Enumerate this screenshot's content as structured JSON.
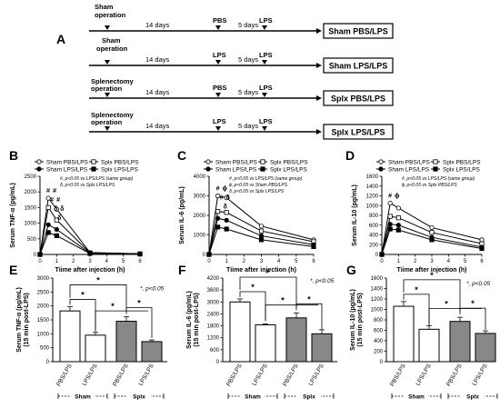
{
  "panel_a": {
    "letter": "A",
    "rows": [
      {
        "start_label": [
          "Sham",
          "operation"
        ],
        "days1": "14 days",
        "mid_label": "PBS",
        "days2": "5 days",
        "end_label": "LPS",
        "box": "Sham PBS/LPS"
      },
      {
        "start_label": [
          "Sham",
          "operation"
        ],
        "days1": "14 days",
        "mid_label": "LPS",
        "days2": "5 days",
        "end_label": "LPS",
        "box": "Sham LPS/LPS"
      },
      {
        "start_label": [
          "Splenectomy",
          "operation"
        ],
        "days1": "14 days",
        "mid_label": "PBS",
        "days2": "5 days",
        "end_label": "LPS",
        "box": "Splx PBS/LPS"
      },
      {
        "start_label": [
          "Splenectomy",
          "operation"
        ],
        "days1": "14 days",
        "mid_label": "LPS",
        "days2": "5 days",
        "end_label": "LPS",
        "box": "Splx LPS/LPS"
      }
    ]
  },
  "legend_names": [
    "Sham PBS/LPS",
    "Splx PBS/LPS",
    "Sham LPS/LPS",
    "Splx LPS/LPS"
  ],
  "chart_data": [
    {
      "panel": "B",
      "type": "line",
      "ylabel": "Serum TNF-α (pg/mL)",
      "xlabel": "Tiime after injection (h)",
      "x_ticks": [
        0,
        1,
        2,
        3,
        4,
        5,
        6
      ],
      "y_ticks": [
        0,
        500,
        1000,
        1500,
        2000,
        2500
      ],
      "ylim": [
        0,
        2500
      ],
      "xlim": [
        0,
        6
      ],
      "notes": [
        "#, p<0.05 vs LPS/LPS (same group)",
        "δ, p<0.05 vs Splx LPS/LPS"
      ],
      "annotations": [
        "#",
        "#",
        "#",
        "#",
        "δ",
        "δ",
        "δ"
      ],
      "series": [
        {
          "name": "Sham PBS/LPS",
          "marker": "open-circle",
          "x": [
            0,
            0.5,
            1,
            3,
            6
          ],
          "y": [
            0,
            1800,
            1450,
            60,
            20
          ]
        },
        {
          "name": "Splx PBS/LPS",
          "marker": "open-square",
          "x": [
            0,
            0.5,
            1,
            3,
            6
          ],
          "y": [
            0,
            1500,
            1100,
            50,
            20
          ]
        },
        {
          "name": "Sham LPS/LPS",
          "marker": "filled-circle",
          "x": [
            0,
            0.5,
            1,
            3,
            6
          ],
          "y": [
            0,
            950,
            800,
            40,
            15
          ]
        },
        {
          "name": "Splx LPS/LPS",
          "marker": "filled-square",
          "x": [
            0,
            0.5,
            1,
            3,
            6
          ],
          "y": [
            0,
            700,
            600,
            30,
            10
          ]
        }
      ]
    },
    {
      "panel": "C",
      "type": "line",
      "ylabel": "Serum IL-6 (pg/mL)",
      "xlabel": "Tiime after injection (h)",
      "x_ticks": [
        0,
        1,
        2,
        3,
        4,
        5,
        6
      ],
      "y_ticks": [
        0,
        1000,
        2000,
        3000,
        4000
      ],
      "ylim": [
        0,
        4000
      ],
      "xlim": [
        0,
        6
      ],
      "notes": [
        "#, p<0.05 vs LPS/LPS (same group)",
        "ϕ, p<0.05 vs Sham PBS/LPS",
        "δ, p<0.05 vs Splx LPS/LPS"
      ],
      "annotations": [
        "#",
        "ϕ",
        "#",
        "δ",
        "δ"
      ],
      "series": [
        {
          "name": "Sham PBS/LPS",
          "marker": "open-circle",
          "x": [
            0,
            0.5,
            1,
            3,
            6
          ],
          "y": [
            0,
            3000,
            2900,
            1450,
            750
          ]
        },
        {
          "name": "Splx PBS/LPS",
          "marker": "open-square",
          "x": [
            0,
            0.5,
            1,
            3,
            6
          ],
          "y": [
            0,
            2200,
            2150,
            1200,
            650
          ]
        },
        {
          "name": "Sham LPS/LPS",
          "marker": "filled-circle",
          "x": [
            0,
            0.5,
            1,
            3,
            6
          ],
          "y": [
            0,
            1850,
            1750,
            950,
            500
          ]
        },
        {
          "name": "Splx LPS/LPS",
          "marker": "filled-square",
          "x": [
            0,
            0.5,
            1,
            3,
            6
          ],
          "y": [
            0,
            1400,
            1300,
            750,
            400
          ]
        }
      ]
    },
    {
      "panel": "D",
      "type": "line",
      "ylabel": "Serum IL-10 (pg/mL)",
      "xlabel": "Tiime after injection (h)",
      "x_ticks": [
        0,
        1,
        2,
        3,
        4,
        5,
        6
      ],
      "y_ticks": [
        0,
        200,
        400,
        600,
        800,
        1000,
        1200,
        1400,
        1600
      ],
      "ylim": [
        0,
        1600
      ],
      "xlim": [
        0,
        6
      ],
      "notes": [
        "#, p<0.05 vs LPS/LPS (same group)",
        "ϕ, p<0.05 vs Splx PBS/LPS"
      ],
      "annotations": [
        "#",
        "ϕ"
      ],
      "series": [
        {
          "name": "Sham PBS/LPS",
          "marker": "open-circle",
          "x": [
            0,
            0.5,
            1,
            3,
            6
          ],
          "y": [
            0,
            1050,
            950,
            550,
            300
          ]
        },
        {
          "name": "Splx PBS/LPS",
          "marker": "open-square",
          "x": [
            0,
            0.5,
            1,
            3,
            6
          ],
          "y": [
            0,
            780,
            750,
            450,
            220
          ]
        },
        {
          "name": "Sham LPS/LPS",
          "marker": "filled-circle",
          "x": [
            0,
            0.5,
            1,
            3,
            6
          ],
          "y": [
            0,
            620,
            600,
            350,
            150
          ]
        },
        {
          "name": "Splx LPS/LPS",
          "marker": "filled-square",
          "x": [
            0,
            0.5,
            1,
            3,
            6
          ],
          "y": [
            0,
            520,
            500,
            300,
            120
          ]
        }
      ]
    },
    {
      "panel": "E",
      "type": "bar",
      "ylabel": "Serum TNF-α (pg/mL)",
      "ylabel2": "(15 min post-LPS)",
      "categories": [
        "PBS/LPS",
        "LPS/LPS",
        "PBS/LPS",
        "LPS/LPS"
      ],
      "groups": [
        "Sham",
        "Splx"
      ],
      "values": [
        1820,
        950,
        1450,
        720
      ],
      "errors": [
        150,
        100,
        160,
        60
      ],
      "y_ticks": [
        0,
        500,
        1000,
        1500,
        2000,
        2500,
        3000
      ],
      "ylim": [
        0,
        3000
      ],
      "sig_label": "*, p<0.05",
      "star": "*"
    },
    {
      "panel": "F",
      "type": "bar",
      "ylabel": "Serum IL-6 (pg/mL)",
      "ylabel2": "(15 min post-LPS)",
      "categories": [
        "PBS/LPS",
        "LPS/LPS",
        "PBS/LPS",
        "LPS/LPS"
      ],
      "groups": [
        "Sham",
        "Splx"
      ],
      "values": [
        3000,
        1850,
        2200,
        1400
      ],
      "errors": [
        150,
        50,
        250,
        200
      ],
      "y_ticks": [
        0,
        600,
        1200,
        1800,
        2400,
        3000,
        3600,
        4200
      ],
      "ylim": [
        0,
        4200
      ],
      "sig_label": "*, p<0.05",
      "star": "*"
    },
    {
      "panel": "G",
      "type": "bar",
      "ylabel": "Serum IL-10 (pg/mL)",
      "ylabel2": "(15 min post-LPS)",
      "categories": [
        "PBS/LPS",
        "LPS/LPS",
        "PBS/LPS",
        "LPS/LPS"
      ],
      "groups": [
        "Sham",
        "Splx"
      ],
      "values": [
        1060,
        620,
        770,
        540
      ],
      "errors": [
        90,
        70,
        80,
        50
      ],
      "y_ticks": [
        0,
        200,
        400,
        600,
        800,
        1000,
        1200,
        1400,
        1600
      ],
      "ylim": [
        0,
        1600
      ],
      "sig_label": "*, p<0.05",
      "star": "*"
    }
  ]
}
